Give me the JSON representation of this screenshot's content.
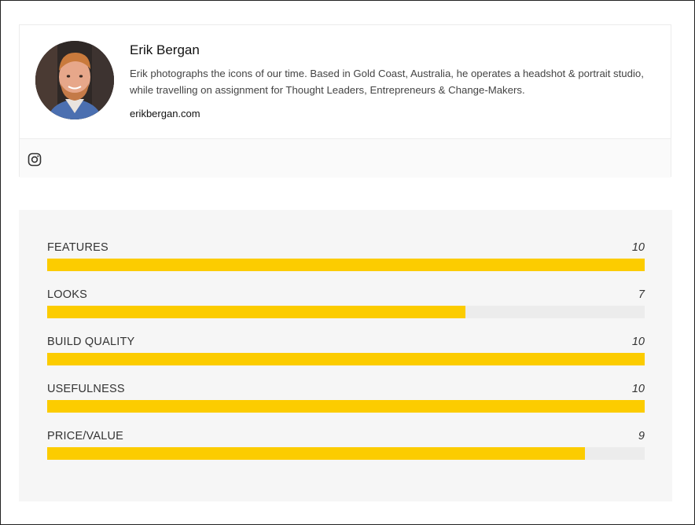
{
  "author": {
    "name": "Erik Bergan",
    "bio": "Erik photographs the icons of our time. Based in Gold Coast, Australia, he operates a headshot & portrait studio, while travelling on assignment for Thought Leaders, Entrepreneurs & Change-Makers.",
    "website": "erikbergan.com",
    "social_icon": "instagram-icon"
  },
  "ratings": {
    "max": 10,
    "bar_color": "#fccc00",
    "track_color": "#ececec",
    "items": [
      {
        "label": "FEATURES",
        "score": "10",
        "value": 10
      },
      {
        "label": "LOOKS",
        "score": "7",
        "value": 7
      },
      {
        "label": "BUILD QUALITY",
        "score": "10",
        "value": 10
      },
      {
        "label": "USEFULNESS",
        "score": "10",
        "value": 10
      },
      {
        "label": "PRICE/VALUE",
        "score": "9",
        "value": 9
      }
    ]
  }
}
